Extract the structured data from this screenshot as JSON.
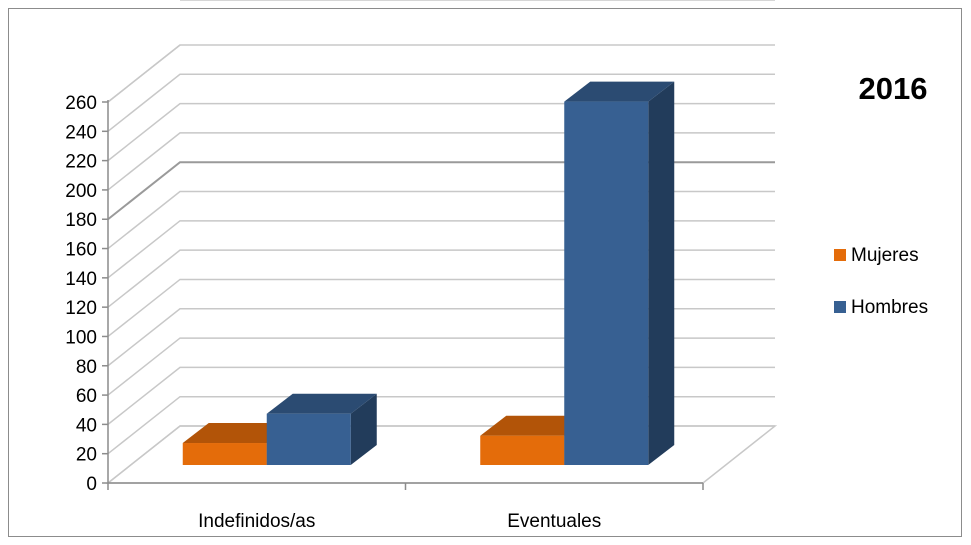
{
  "chart_data": {
    "type": "bar",
    "title": "2016",
    "categories": [
      "Indefinidos/as",
      "Eventuales"
    ],
    "series": [
      {
        "name": "Mujeres",
        "values": [
          15,
          20
        ],
        "color": "#e46c0a"
      },
      {
        "name": "Hombres",
        "values": [
          35,
          248
        ],
        "color": "#376092"
      }
    ],
    "y_ticks": [
      "0",
      "20",
      "40",
      "60",
      "80",
      "100",
      "120",
      "140",
      "160",
      "180",
      "200",
      "220",
      "240",
      "260"
    ],
    "ylim": [
      0,
      260
    ],
    "grid": true,
    "legend_position": "right",
    "style": "3d-clustered-column"
  }
}
